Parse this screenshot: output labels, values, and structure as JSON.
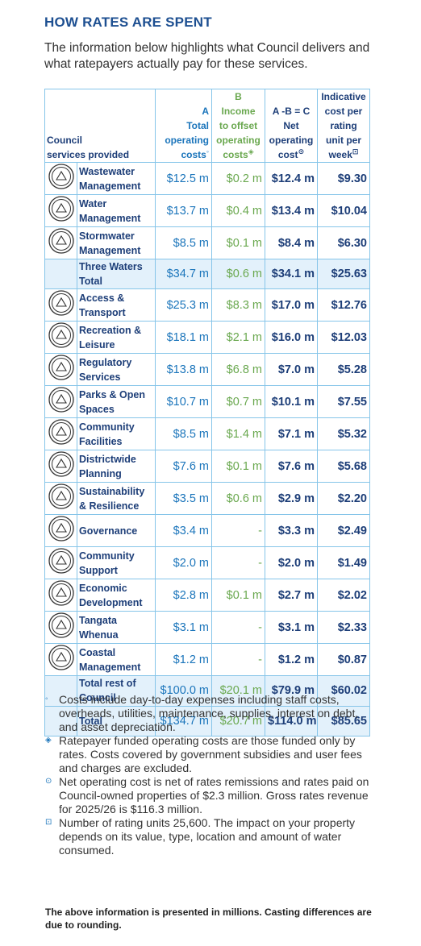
{
  "header": {
    "title": "HOW RATES ARE SPENT",
    "intro": "The information below highlights what Council delivers and what ratepayers actually pay for these services."
  },
  "table": {
    "columns": [
      {
        "lines": [
          "Council",
          "services provided"
        ]
      },
      {
        "lines": [
          "A",
          "Total",
          "operating",
          "costs"
        ],
        "marker": "◦"
      },
      {
        "lines": [
          "B",
          "Income",
          "to offset",
          "operating",
          "costs"
        ],
        "marker": "◈"
      },
      {
        "lines": [
          "A -B = C",
          "Net",
          "operating",
          "cost"
        ],
        "marker": "⊙"
      },
      {
        "lines": [
          "Indicative",
          "cost per",
          "rating",
          "unit per",
          "week"
        ],
        "marker": "⊡"
      }
    ],
    "rows": [
      [
        "Wastewater Management",
        "$12.5 m",
        "$0.2 m",
        "$12.4 m",
        "$9.30"
      ],
      [
        "Water Management",
        "$13.7 m",
        "$0.4 m",
        "$13.4 m",
        "$10.04"
      ],
      [
        "Stormwater Management",
        "$8.5 m",
        "$0.1 m",
        "$8.4 m",
        "$6.30"
      ],
      [
        "Three Waters Total",
        "$34.7 m",
        "$0.6 m",
        "$34.1 m",
        "$25.63"
      ],
      [
        "Access & Transport",
        "$25.3 m",
        "$8.3 m",
        "$17.0 m",
        "$12.76"
      ],
      [
        "Recreation & Leisure",
        "$18.1 m",
        "$2.1 m",
        "$16.0 m",
        "$12.03"
      ],
      [
        "Regulatory Services",
        "$13.8 m",
        "$6.8 m",
        "$7.0 m",
        "$5.28"
      ],
      [
        "Parks & Open Spaces",
        "$10.7 m",
        "$0.7 m",
        "$10.1 m",
        "$7.55"
      ],
      [
        "Community Facilities",
        "$8.5 m",
        "$1.4 m",
        "$7.1 m",
        "$5.32"
      ],
      [
        "Districtwide Planning",
        "$7.6 m",
        "$0.1 m",
        "$7.6 m",
        "$5.68"
      ],
      [
        "Sustainability & Resilience",
        "$3.5 m",
        "$0.6 m",
        "$2.9 m",
        "$2.20"
      ],
      [
        "Governance",
        "$3.4 m",
        "-",
        "$3.3 m",
        "$2.49"
      ],
      [
        "Community Support",
        "$2.0 m",
        "-",
        "$2.0 m",
        "$1.49"
      ],
      [
        "Economic Development",
        "$2.8 m",
        "$0.1 m",
        "$2.7 m",
        "$2.02"
      ],
      [
        "Tangata Whenua",
        "$3.1 m",
        "-",
        "$3.1 m",
        "$2.33"
      ],
      [
        "Coastal Management",
        "$1.2 m",
        "-",
        "$1.2 m",
        "$0.87"
      ],
      [
        "Total rest of Council",
        "$100.0 m",
        "$20.1 m",
        "$79.9 m",
        "$60.02"
      ],
      [
        "Total",
        "$134.7 m",
        "$20.7 m",
        "$114.0 m",
        "$85.65"
      ]
    ]
  },
  "footnotes": [
    {
      "marker": "◦",
      "text": "Costs include day-to-day expenses including staff costs, overheads, utilities, maintenance, supplies, interest on debt, and asset depreciation."
    },
    {
      "marker": "◈",
      "text": "Ratepayer funded operating costs are those funded only by rates. Costs covered by government subsidies and user fees and charges are excluded."
    },
    {
      "marker": "⊙",
      "text": "Net operating cost is net of rates remissions and rates paid on Council-owned properties of $2.3 million. Gross rates revenue for 2025/26 is $116.3 million."
    },
    {
      "marker": "⊡",
      "text": "Number of rating units 25,600. The impact on your property depends on its value, type, location and amount of water consumed."
    }
  ],
  "note": "The above information is presented in millions. Casting differences are due to rounding."
}
